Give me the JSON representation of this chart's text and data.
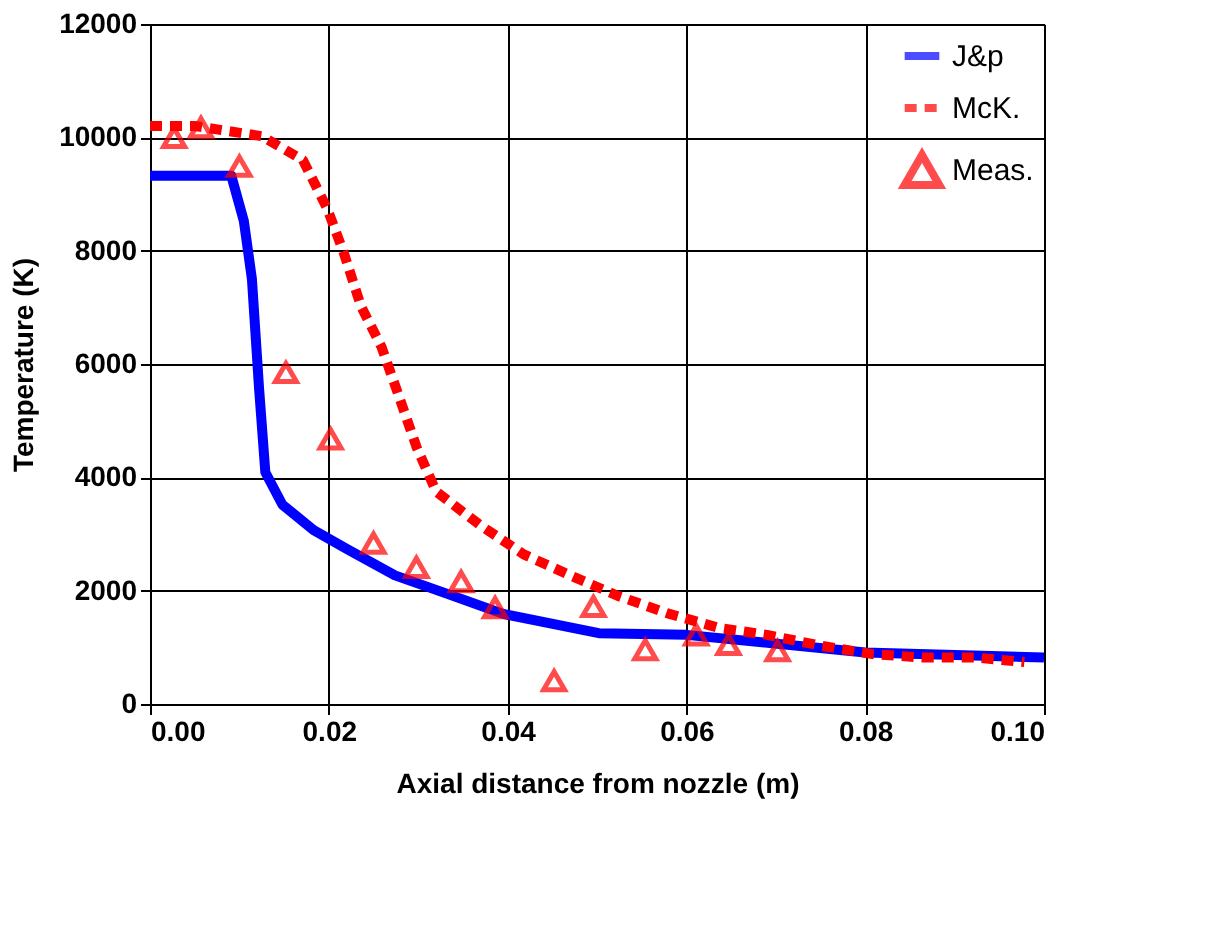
{
  "chart_data": {
    "type": "line",
    "xlabel": "Axial distance from nozzle (m)",
    "ylabel": "Temperature (K)",
    "xlim": [
      0,
      0.1
    ],
    "xticks": [
      {
        "value": 0,
        "label": "0.00"
      },
      {
        "value": 0.02,
        "label": "0.02"
      },
      {
        "value": 0.04,
        "label": "0.04"
      },
      {
        "value": 0.06,
        "label": "0.06"
      },
      {
        "value": 0.08,
        "label": "0.08"
      },
      {
        "value": 0.1,
        "label": "0.10"
      }
    ],
    "ylim": [
      0,
      12000
    ],
    "yticks": [
      0,
      2000,
      4000,
      6000,
      8000,
      10000,
      12000
    ],
    "grid": true,
    "legend": "top right",
    "series": [
      {
        "name": "J&p",
        "color": "#0000ff",
        "line_style": "solid",
        "marker": "none",
        "x": [
          0,
          0.0091,
          0.0105,
          0.0114,
          0.0122,
          0.0129,
          0.0148,
          0.0183,
          0.0221,
          0.0274,
          0.0335,
          0.0395,
          0.0502,
          0.06,
          0.08,
          0.1
        ],
        "values": [
          9320,
          9320,
          8520,
          7500,
          5570,
          4090,
          3520,
          3070,
          2730,
          2270,
          1930,
          1590,
          1250,
          1220,
          910,
          820
        ]
      },
      {
        "name": "McK.",
        "color": "#ff0000",
        "line_style": "dashed",
        "marker": "none",
        "x": [
          0,
          0.005,
          0.0125,
          0.0171,
          0.0198,
          0.0217,
          0.0236,
          0.0259,
          0.0278,
          0.0298,
          0.032,
          0.0369,
          0.0418,
          0.0473,
          0.0523,
          0.0579,
          0.0637,
          0.069,
          0.075,
          0.0808,
          0.0864,
          0.0923,
          0.0978
        ],
        "values": [
          10200,
          10200,
          10020,
          9600,
          8750,
          7950,
          7020,
          6300,
          5450,
          4540,
          3750,
          3160,
          2640,
          2250,
          1910,
          1600,
          1340,
          1220,
          1030,
          880,
          820,
          820,
          740
        ]
      },
      {
        "name": "Meas.",
        "color": "#ff0000",
        "type": "scatter",
        "marker": "triangle",
        "x": [
          0.0027,
          0.0057,
          0.01,
          0.0152,
          0.0202,
          0.025,
          0.0298,
          0.0348,
          0.0386,
          0.0452,
          0.0496,
          0.0554,
          0.0611,
          0.0647,
          0.0702
        ],
        "values": [
          10000,
          10170,
          9490,
          5850,
          4680,
          2840,
          2410,
          2160,
          1700,
          410,
          1720,
          960,
          1220,
          1050,
          940
        ]
      }
    ]
  }
}
